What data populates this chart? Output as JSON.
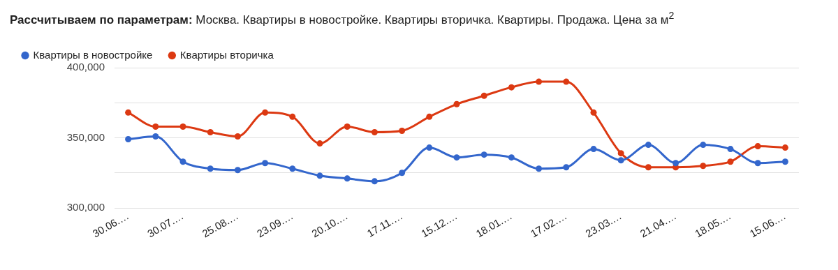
{
  "chart_data": {
    "type": "line",
    "title": "Рассчитываем по параметрам:",
    "subtitle": "Москва. Квартиры в новостройке. Квартиры вторичка. Квартиры. Продажа. Цена за м$^{2}$",
    "categories": [
      "30.06.…",
      null,
      "30.07.…",
      null,
      "25.08.…",
      null,
      "23.09.…",
      null,
      "20.10.…",
      null,
      "17.11.…",
      null,
      "15.12.…",
      null,
      "18.01.…",
      null,
      "17.02.…",
      null,
      "23.03.…",
      null,
      "21.04.…",
      null,
      "18.05.…",
      null,
      "15.06.…"
    ],
    "series": [
      {
        "name": "Квартиры в новостройке",
        "color": "#3366cc",
        "values": [
          349000,
          351000,
          333000,
          328000,
          327000,
          332000,
          328000,
          323000,
          321000,
          319000,
          325000,
          343000,
          336000,
          338000,
          336000,
          328000,
          329000,
          342000,
          334000,
          345000,
          332000,
          345000,
          342000,
          332000,
          333000
        ]
      },
      {
        "name": "Квартиры вторичка",
        "color": "#dc3912",
        "values": [
          368000,
          358000,
          358000,
          354000,
          351000,
          368000,
          365000,
          346000,
          358000,
          354000,
          355000,
          365000,
          374000,
          380000,
          386000,
          390000,
          390000,
          368000,
          339000,
          329000,
          329000,
          330000,
          333000,
          344000,
          343000
        ]
      }
    ],
    "ylim": [
      300000,
      400000
    ],
    "yticks": [
      {
        "value": 300000,
        "label": "300,000"
      },
      {
        "value": 325000,
        "label": null
      },
      {
        "value": 350000,
        "label": "350,000"
      },
      {
        "value": 375000,
        "label": null
      },
      {
        "value": 400000,
        "label": "400,000"
      }
    ],
    "grid": "y",
    "legend": "top left",
    "marker": "circle",
    "line_style": "solid"
  }
}
